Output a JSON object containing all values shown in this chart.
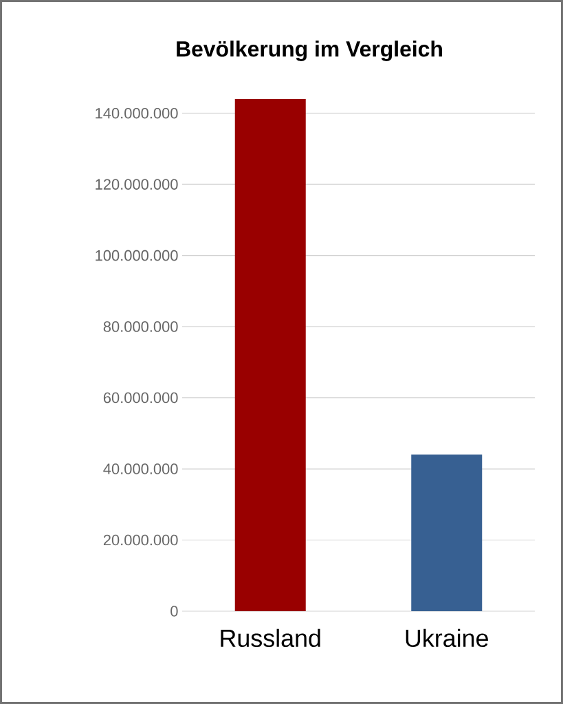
{
  "chart_data": {
    "type": "bar",
    "title": "Bevölkerung im Vergleich",
    "categories": [
      "Russland",
      "Ukraine"
    ],
    "values": [
      144000000,
      44000000
    ],
    "colors": [
      "#990000",
      "#376092"
    ],
    "yticks": [
      0,
      {
        "value": 20000000,
        "label": "20.000.000"
      },
      {
        "value": 40000000,
        "label": "40.000.000"
      },
      {
        "value": 60000000,
        "label": "60.000.000"
      },
      {
        "value": 80000000,
        "label": "80.000.000"
      },
      {
        "value": 100000000,
        "label": "100.000.000"
      },
      {
        "value": 120000000,
        "label": "120.000.000"
      },
      {
        "value": 140000000,
        "label": "140.000.000"
      }
    ],
    "ylim": [
      0,
      144000000
    ],
    "grid": "y"
  }
}
